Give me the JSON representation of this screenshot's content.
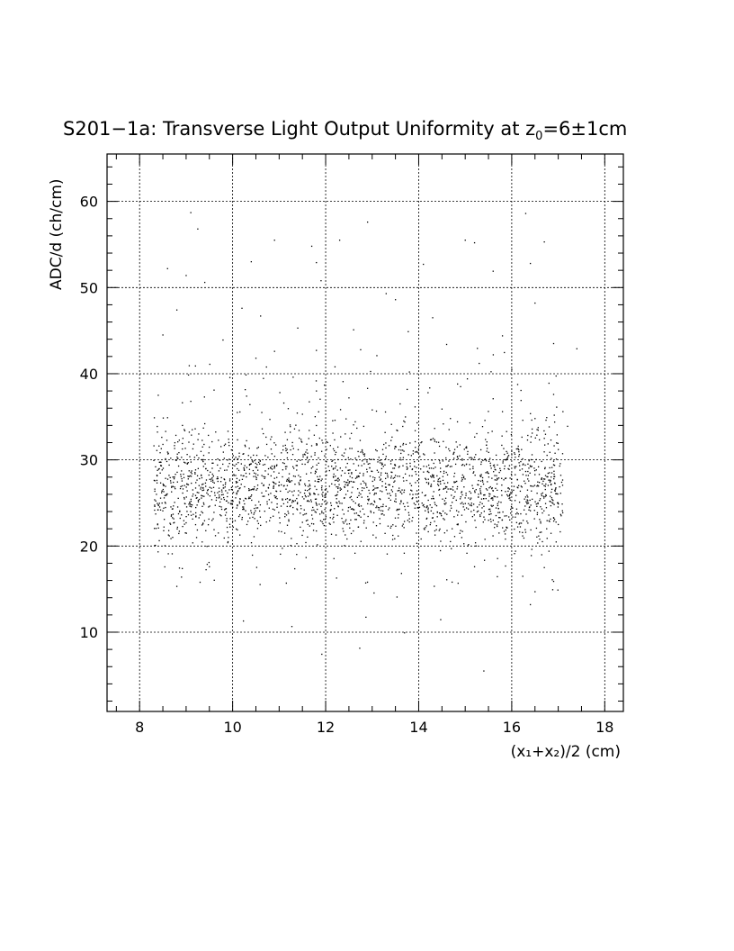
{
  "chart_data": {
    "type": "scatter",
    "title": {
      "main": "S201−1a: Transverse Light Output Uniformity at z",
      "subscript": "0",
      "suffix": "=6±1cm"
    },
    "xlabel": "(x₁+x₂)/2 (cm)",
    "ylabel": "ADC/d (ch/cm)",
    "xlim": [
      7.3,
      18.4
    ],
    "ylim": [
      0.8,
      65.5
    ],
    "x_ticks": [
      "8",
      "10",
      "12",
      "14",
      "16",
      "18"
    ],
    "y_ticks": [
      "10",
      "20",
      "30",
      "40",
      "50",
      "60"
    ],
    "grid": true,
    "legend": "none",
    "point_color": "#000000",
    "x_range_of_points": [
      8.3,
      17.4
    ],
    "band_center_y": 27,
    "band_spread_y": 3,
    "points": [
      [
        15.4,
        5.5
      ],
      [
        9.3,
        15.8
      ],
      [
        8.9,
        16.4
      ],
      [
        8.7,
        19.1
      ],
      [
        9.5,
        17.6
      ],
      [
        16.7,
        17.5
      ],
      [
        16.4,
        13.2
      ],
      [
        16.9,
        15.9
      ],
      [
        15.2,
        17.6
      ],
      [
        16.5,
        14.7
      ],
      [
        9.1,
        58.7
      ],
      [
        9.25,
        56.8
      ],
      [
        10.9,
        55.5
      ],
      [
        12.9,
        57.6
      ],
      [
        15.0,
        55.5
      ],
      [
        15.2,
        55.2
      ],
      [
        16.7,
        55.3
      ],
      [
        16.3,
        58.6
      ],
      [
        11.7,
        54.8
      ],
      [
        11.9,
        50.8
      ],
      [
        8.6,
        52.2
      ],
      [
        9.0,
        51.4
      ],
      [
        9.4,
        50.6
      ],
      [
        10.4,
        53.0
      ],
      [
        10.6,
        46.7
      ],
      [
        11.8,
        52.9
      ],
      [
        12.3,
        55.5
      ],
      [
        13.3,
        49.3
      ],
      [
        14.1,
        52.7
      ],
      [
        15.6,
        51.9
      ],
      [
        16.4,
        52.8
      ],
      [
        16.5,
        48.2
      ],
      [
        8.8,
        47.4
      ],
      [
        10.2,
        47.6
      ],
      [
        10.9,
        42.6
      ],
      [
        11.4,
        45.3
      ],
      [
        12.6,
        45.1
      ],
      [
        13.5,
        48.6
      ],
      [
        14.3,
        46.5
      ],
      [
        15.8,
        44.4
      ],
      [
        16.9,
        43.5
      ],
      [
        8.5,
        44.5
      ],
      [
        9.2,
        40.9
      ],
      [
        10.5,
        41.8
      ],
      [
        11.3,
        39.6
      ],
      [
        12.2,
        40.8
      ],
      [
        13.1,
        42.1
      ],
      [
        13.8,
        40.2
      ],
      [
        14.6,
        43.4
      ],
      [
        15.3,
        41.2
      ],
      [
        16.0,
        40.5
      ],
      [
        16.8,
        38.9
      ],
      [
        8.4,
        37.5
      ],
      [
        9.1,
        36.8
      ],
      [
        9.6,
        38.1
      ],
      [
        10.3,
        37.4
      ],
      [
        11.1,
        36.6
      ],
      [
        11.8,
        38.0
      ],
      [
        12.5,
        37.2
      ],
      [
        12.9,
        38.3
      ],
      [
        13.6,
        36.5
      ],
      [
        14.2,
        37.8
      ],
      [
        14.9,
        38.5
      ],
      [
        15.6,
        37.1
      ],
      [
        16.2,
        36.9
      ],
      [
        16.9,
        37.6
      ],
      [
        17.1,
        35.6
      ],
      [
        8.6,
        34.9
      ],
      [
        9.4,
        34.2
      ],
      [
        10.1,
        35.5
      ],
      [
        10.8,
        34.7
      ],
      [
        11.5,
        35.3
      ],
      [
        12.2,
        34.6
      ],
      [
        13.0,
        35.8
      ],
      [
        13.7,
        34.4
      ],
      [
        14.5,
        35.9
      ],
      [
        15.1,
        34.3
      ],
      [
        15.8,
        35.6
      ],
      [
        16.5,
        34.8
      ],
      [
        17.2,
        33.9
      ],
      [
        17.4,
        42.9
      ],
      [
        16.0,
        30.6
      ],
      [
        15.2,
        30.3
      ],
      [
        14.1,
        30.7
      ],
      [
        13.3,
        30.4
      ],
      [
        12.4,
        30.8
      ],
      [
        11.6,
        30.2
      ],
      [
        10.7,
        30.5
      ],
      [
        9.8,
        30.9
      ],
      [
        8.9,
        30.3
      ],
      [
        8.5,
        31.8
      ],
      [
        17.0,
        31.2
      ],
      [
        16.7,
        32.5
      ],
      [
        8.7,
        24.3
      ],
      [
        9.0,
        22.7
      ],
      [
        9.3,
        23.6
      ],
      [
        9.6,
        21.9
      ],
      [
        9.9,
        20.5
      ],
      [
        10.2,
        23.1
      ],
      [
        10.6,
        22.4
      ],
      [
        11.2,
        23.8
      ],
      [
        11.7,
        22.6
      ],
      [
        12.1,
        23.3
      ],
      [
        12.7,
        22.2
      ],
      [
        13.2,
        23.7
      ],
      [
        13.8,
        22.8
      ],
      [
        14.4,
        23.4
      ],
      [
        14.9,
        21.8
      ],
      [
        15.5,
        23.0
      ],
      [
        15.9,
        22.1
      ],
      [
        16.3,
        21.6
      ],
      [
        16.6,
        20.8
      ],
      [
        16.8,
        19.4
      ],
      [
        17.0,
        22.5
      ],
      [
        9.1,
        24.8
      ],
      [
        10.0,
        24.5
      ],
      [
        10.9,
        24.2
      ],
      [
        11.9,
        24.6
      ],
      [
        12.8,
        24.3
      ],
      [
        13.6,
        24.9
      ],
      [
        14.7,
        24.4
      ],
      [
        15.6,
        24.7
      ],
      [
        16.4,
        24.1
      ],
      [
        16.9,
        23.3
      ]
    ]
  }
}
